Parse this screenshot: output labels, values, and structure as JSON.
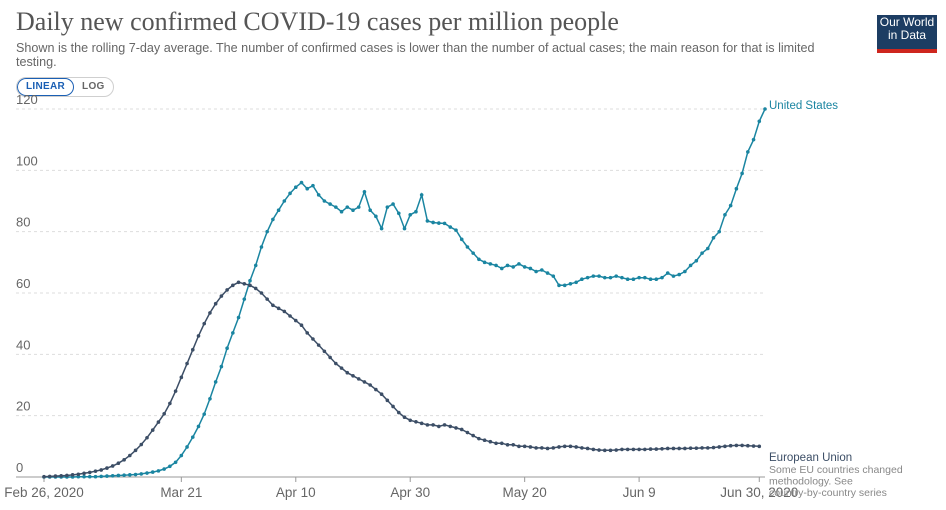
{
  "header": {
    "title": "Daily new confirmed COVID-19 cases per million people",
    "subtitle": "Shown is the rolling 7-day average. The number of confirmed cases is lower than the number of actual cases; the main reason for that is limited testing.",
    "logo_line1": "Our World",
    "logo_line2": "in Data"
  },
  "controls": {
    "linear_label": "LINEAR",
    "log_label": "LOG",
    "selected": "linear"
  },
  "colors": {
    "us": "#1a85a1",
    "eu": "#3c4e66",
    "grid": "#dddddd",
    "axis_text": "#666666"
  },
  "chart_data": {
    "type": "line",
    "title": "Daily new confirmed COVID-19 cases per million people",
    "ylim": [
      0,
      120
    ],
    "y_ticks": [
      0,
      20,
      40,
      60,
      80,
      100,
      120
    ],
    "x_tick_labels": [
      "Feb 26, 2020",
      "Mar 21",
      "Apr 10",
      "Apr 30",
      "May 20",
      "Jun 9",
      "Jun 30, 2020"
    ],
    "x_tick_days": [
      0,
      24,
      44,
      64,
      84,
      104,
      125
    ],
    "grid": true,
    "series": [
      {
        "name": "United States",
        "color_key": "us",
        "values": [
          0.0,
          0.0,
          0.0,
          0.0,
          0.0,
          0.0,
          0.1,
          0.1,
          0.1,
          0.1,
          0.2,
          0.3,
          0.4,
          0.5,
          0.6,
          0.7,
          0.8,
          1.0,
          1.3,
          1.6,
          2.0,
          2.6,
          3.5,
          4.8,
          7.0,
          9.8,
          13.0,
          16.5,
          20.5,
          25.5,
          31.0,
          36.0,
          42.0,
          47.0,
          52.0,
          58.0,
          64.0,
          69.0,
          75.0,
          80.0,
          84.0,
          87.0,
          90.0,
          92.5,
          94.5,
          96.0,
          94.0,
          95.0,
          92.0,
          90.0,
          89.0,
          88.0,
          86.5,
          88.0,
          87.0,
          88.0,
          93.0,
          87.0,
          85.0,
          81.0,
          88.0,
          89.0,
          86.0,
          81.0,
          85.5,
          86.5,
          92.0,
          83.5,
          83.0,
          82.8,
          82.7,
          81.5,
          80.5,
          77.5,
          75.0,
          73.0,
          71.0,
          70.0,
          69.5,
          69.0,
          68.0,
          69.0,
          68.5,
          69.5,
          68.5,
          68.0,
          67.0,
          67.5,
          66.5,
          65.5,
          62.5,
          62.5,
          63.0,
          63.5,
          64.5,
          65.0,
          65.5,
          65.5,
          65.0,
          65.0,
          65.5,
          65.0,
          64.5,
          64.5,
          65.0,
          65.0,
          64.5,
          64.5,
          65.0,
          66.5,
          65.5,
          66.0,
          67.0,
          69.0,
          70.5,
          73.0,
          74.5,
          78.0,
          80.0,
          85.5,
          88.5,
          94.0,
          99.0,
          106.0,
          110.0,
          116.0,
          120.0
        ]
      },
      {
        "name": "European Union",
        "note": "Some EU countries changed methodology. See country-by-country series",
        "color_key": "eu",
        "values": [
          0.1,
          0.2,
          0.3,
          0.4,
          0.5,
          0.7,
          0.9,
          1.2,
          1.5,
          1.9,
          2.3,
          2.9,
          3.6,
          4.5,
          5.6,
          7.0,
          8.7,
          10.6,
          12.8,
          15.3,
          17.9,
          20.6,
          24.0,
          28.0,
          32.5,
          37.0,
          41.5,
          46.0,
          50.0,
          53.5,
          56.5,
          59.0,
          61.0,
          62.5,
          63.5,
          63.0,
          62.5,
          61.5,
          60.0,
          58.0,
          56.0,
          55.0,
          54.0,
          52.5,
          51.0,
          49.5,
          47.0,
          45.0,
          43.0,
          41.0,
          39.0,
          37.0,
          35.5,
          34.0,
          33.0,
          32.0,
          31.0,
          30.0,
          28.5,
          27.0,
          25.0,
          23.0,
          21.0,
          19.5,
          18.5,
          18.0,
          17.5,
          17.0,
          17.0,
          16.5,
          17.0,
          16.5,
          16.0,
          15.5,
          14.5,
          13.5,
          12.5,
          12.0,
          11.5,
          11.0,
          11.0,
          10.5,
          10.5,
          10.0,
          10.0,
          9.8,
          9.5,
          9.5,
          9.3,
          9.5,
          9.8,
          10.0,
          10.0,
          9.8,
          9.5,
          9.3,
          9.0,
          8.8,
          8.7,
          8.7,
          8.8,
          9.0,
          9.0,
          9.0,
          9.0,
          9.0,
          9.1,
          9.1,
          9.2,
          9.3,
          9.3,
          9.3,
          9.3,
          9.4,
          9.4,
          9.5,
          9.5,
          9.6,
          9.8,
          10.0,
          10.2,
          10.3,
          10.3,
          10.2,
          10.1,
          10.0
        ]
      }
    ]
  }
}
